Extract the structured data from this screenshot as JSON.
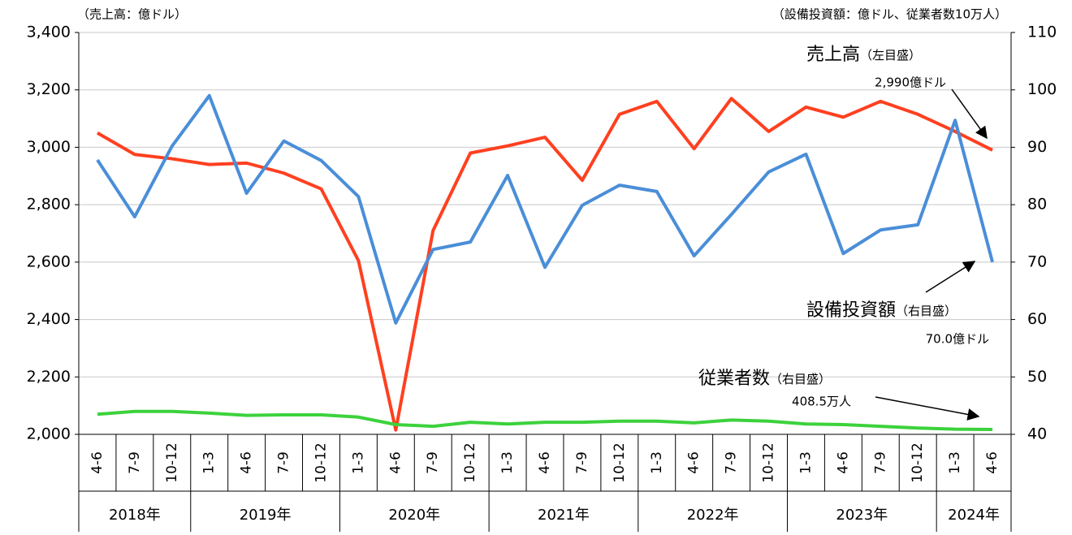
{
  "chart_data": {
    "type": "line",
    "y_unit_label": "（売上高：億ドル）",
    "y2_unit_label": "（設備投資額：億ドル、従業者数10万人）",
    "categories": [
      "4-6",
      "7-9",
      "10-12",
      "1-3",
      "4-6",
      "7-9",
      "10-12",
      "1-3",
      "4-6",
      "7-9",
      "10-12",
      "1-3",
      "4-6",
      "7-9",
      "10-12",
      "1-3",
      "4-6",
      "7-9",
      "10-12",
      "1-3",
      "4-6",
      "7-9",
      "10-12",
      "1-3",
      "4-6"
    ],
    "year_groups": [
      {
        "label": "2018年",
        "n": 3
      },
      {
        "label": "2019年",
        "n": 4
      },
      {
        "label": "2020年",
        "n": 4
      },
      {
        "label": "2021年",
        "n": 4
      },
      {
        "label": "2022年",
        "n": 4
      },
      {
        "label": "2023年",
        "n": 4
      },
      {
        "label": "2024年",
        "n": 2
      }
    ],
    "ylim": [
      2000,
      3400
    ],
    "yticks": [
      {
        "value": 2000,
        "label": "2,000"
      },
      {
        "value": 2200,
        "label": "2,200"
      },
      {
        "value": 2400,
        "label": "2,400"
      },
      {
        "value": 2600,
        "label": "2,600"
      },
      {
        "value": 2800,
        "label": "2,800"
      },
      {
        "value": 3000,
        "label": "3,000"
      },
      {
        "value": 3200,
        "label": "3,200"
      },
      {
        "value": 3400,
        "label": "3,400"
      }
    ],
    "y2lim": [
      40,
      110
    ],
    "y2ticks": [
      40,
      50,
      60,
      70,
      80,
      90,
      100,
      110
    ],
    "grid": true,
    "series": [
      {
        "name": "売上高",
        "axis_note": "（左目盛）",
        "color": "#ff4020",
        "axis": "y",
        "values": [
          3050,
          2975,
          2960,
          2940,
          2945,
          2910,
          2855,
          2605,
          2015,
          2710,
          2980,
          3005,
          3035,
          2885,
          3115,
          3160,
          2995,
          3170,
          3055,
          3140,
          3105,
          3160,
          3115,
          3055,
          2990
        ],
        "end_label": "2,990億ドル"
      },
      {
        "name": "設備投資額",
        "axis_note": "（右目盛）",
        "color": "#4a8ed8",
        "axis": "y2",
        "values": [
          87.8,
          77.9,
          90.2,
          99.0,
          82.0,
          91.1,
          87.7,
          81.4,
          59.4,
          72.2,
          73.5,
          85.1,
          69.1,
          79.9,
          83.4,
          82.3,
          71.1,
          78.3,
          85.7,
          88.8,
          71.5,
          75.6,
          76.5,
          94.7,
          70.0
        ],
        "end_label": "70.0億ドル"
      },
      {
        "name": "従業者数",
        "axis_note": "（右目盛）",
        "color": "#3cd23c",
        "axis": "y2",
        "values": [
          43.5,
          44.0,
          44.0,
          43.7,
          43.3,
          43.4,
          43.4,
          43.0,
          41.7,
          41.4,
          42.1,
          41.8,
          42.1,
          42.1,
          42.3,
          42.3,
          42.0,
          42.5,
          42.3,
          41.8,
          41.7,
          41.4,
          41.1,
          40.9,
          40.85
        ],
        "end_label": "408.5万人"
      }
    ]
  }
}
